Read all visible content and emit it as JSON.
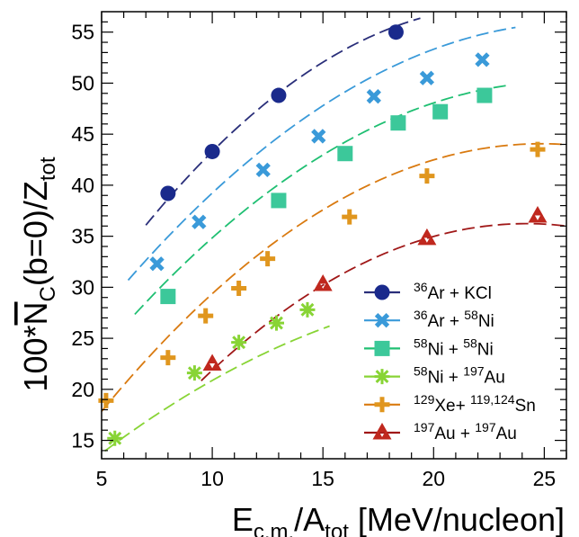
{
  "chart_data": {
    "type": "scatter",
    "title": "",
    "xlabel": "E_c.m./A_tot [MeV/nucleon]",
    "ylabel": "100*N_C(b=0)/Z_tot",
    "xlim": [
      5,
      26
    ],
    "ylim": [
      13.2,
      57
    ],
    "x_ticks": [
      5,
      10,
      15,
      20,
      25
    ],
    "y_ticks": [
      15,
      20,
      25,
      30,
      35,
      40,
      45,
      50,
      55
    ],
    "grid": false,
    "legend_position": "bottom-right",
    "series": [
      {
        "name": "36Ar + KCl",
        "legend": {
          "pre1": "36",
          "a": "Ar + KCl",
          "pre2": "",
          "b": ""
        },
        "color": "#1a2a8c",
        "line_color": "#2a2f7a",
        "marker": "circle",
        "x": [
          8.0,
          10.0,
          13.0,
          18.3
        ],
        "y": [
          39.2,
          43.3,
          48.8,
          55.0
        ],
        "fit": {
          "coeffs": [
            13.5,
            3.8,
            -0.082
          ],
          "x_range": [
            7.0,
            19.4
          ]
        }
      },
      {
        "name": "36Ar + 58Ni",
        "legend": {
          "pre1": "36",
          "a": "Ar + ",
          "pre2": "58",
          "b": "Ni"
        },
        "color": "#3a9ad9",
        "line_color": "#3a9ad9",
        "marker": "x",
        "x": [
          7.5,
          9.4,
          12.3,
          14.8,
          17.3,
          19.7,
          22.2
        ],
        "y": [
          32.3,
          36.4,
          41.5,
          44.8,
          48.7,
          50.5,
          52.3
        ],
        "fit": {
          "coeffs": [
            13.0,
            3.23,
            -0.0607
          ],
          "x_range": [
            6.2,
            23.7
          ]
        }
      },
      {
        "name": "58Ni + 58Ni",
        "legend": {
          "pre1": "58",
          "a": "Ni + ",
          "pre2": "58",
          "b": "Ni"
        },
        "color": "#3cc89a",
        "line_color": "#1fbf72",
        "marker": "square",
        "x": [
          8.0,
          13.0,
          16.0,
          18.4,
          20.3,
          22.3
        ],
        "y": [
          29.1,
          38.5,
          43.1,
          46.1,
          47.2,
          48.8
        ],
        "fit": {
          "coeffs": [
            9.5,
            3.14,
            -0.0606
          ],
          "x_range": [
            6.5,
            23.5
          ]
        }
      },
      {
        "name": "58Ni + 197Au",
        "legend": {
          "pre1": "58",
          "a": "Ni + ",
          "pre2": "197",
          "b": "Au"
        },
        "color": "#88d435",
        "line_color": "#88d435",
        "marker": "star",
        "x": [
          5.6,
          9.2,
          11.2,
          12.9,
          14.3
        ],
        "y": [
          15.2,
          21.6,
          24.6,
          26.5,
          27.8
        ],
        "fit": {
          "coeffs": [
            4.5,
            2.05,
            -0.0413
          ],
          "x_range": [
            4.5,
            15.3
          ]
        }
      },
      {
        "name": "129Xe+ 119,124Sn",
        "legend": {
          "pre1": "129",
          "a": "Xe+ ",
          "pre2": "119,124",
          "b": "Sn"
        },
        "color": "#e0961e",
        "line_color": "#d97a10",
        "marker": "cross",
        "x": [
          5.2,
          8.0,
          9.7,
          11.2,
          12.5,
          16.2,
          19.7,
          24.7
        ],
        "y": [
          18.9,
          23.1,
          27.2,
          29.9,
          32.8,
          36.9,
          40.9,
          43.5
        ],
        "fit": {
          "coeffs": [
            3.0,
            3.3,
            -0.0663
          ],
          "x_range": [
            5.0,
            26.0
          ]
        }
      },
      {
        "name": "197Au + 197Au",
        "legend": {
          "pre1": "197",
          "a": "Au + ",
          "pre2": "197",
          "b": "Au"
        },
        "color": "#c0281e",
        "line_color": "#a01818",
        "marker": "triangles",
        "x": [
          10.0,
          15.0,
          19.7,
          24.7
        ],
        "y": [
          22.5,
          30.3,
          34.8,
          37.0
        ],
        "fit": {
          "coeffs": [
            -5.5,
            3.45,
            -0.0713
          ],
          "x_range": [
            9.5,
            26.0
          ]
        }
      }
    ]
  }
}
